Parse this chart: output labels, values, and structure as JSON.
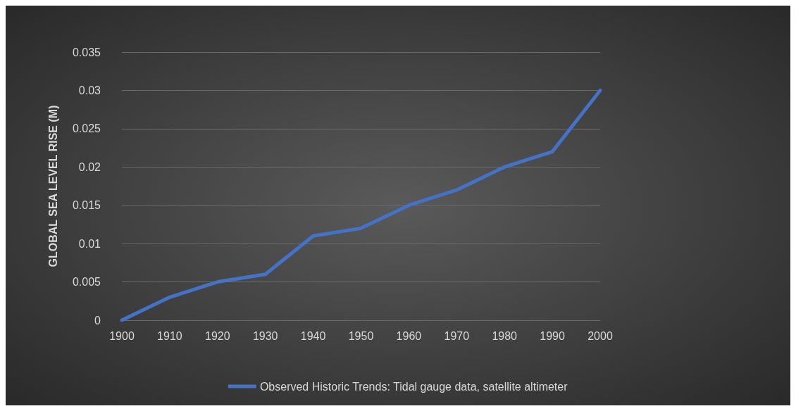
{
  "chart_data": {
    "type": "line",
    "ylabel": "GLOBAL SEA LEVEL RISE (M)",
    "categories": [
      "1900",
      "1910",
      "1920",
      "1930",
      "1940",
      "1950",
      "1960",
      "1970",
      "1980",
      "1990",
      "2000"
    ],
    "series": [
      {
        "name": "Observed Historic Trends: Tidal gauge data, satellite altimeter",
        "color": "#4472c4",
        "values": [
          0,
          0.003,
          0.005,
          0.006,
          0.011,
          0.012,
          0.015,
          0.017,
          0.02,
          0.022,
          0.03
        ]
      }
    ],
    "ylim": [
      0,
      0.035
    ],
    "yticks": [
      0,
      0.005,
      0.01,
      0.015,
      0.02,
      0.025,
      0.03,
      0.035
    ],
    "grid": "y",
    "legend": "bottom",
    "marker": "none",
    "line_style": "solid"
  }
}
